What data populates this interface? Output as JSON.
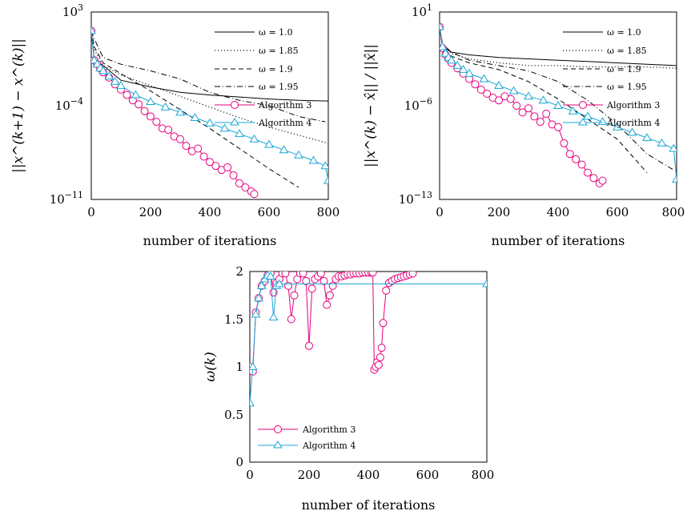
{
  "figure": {
    "colors": {
      "algorithm3": "#e6007e",
      "algorithm4": "#1aa7d6",
      "omega": "#000000",
      "axis": "#000000"
    }
  },
  "chart_data": [
    {
      "type": "line",
      "xlabel": "number of iterations",
      "ylabel": "||x^(k+1) − x^(k)||",
      "xlim": [
        0,
        800
      ],
      "ylim": [
        -11,
        3
      ],
      "yscale": "log",
      "xticks": [
        "0",
        "200",
        "400",
        "600",
        "800"
      ],
      "yticks": [
        {
          "label": "10",
          "exp": "3",
          "value": 3
        },
        {
          "label": "10",
          "exp": "−4",
          "value": -4
        },
        {
          "label": "10",
          "exp": "−11",
          "value": -11
        }
      ],
      "legend": "right",
      "series": [
        {
          "name": "ω = 1.0",
          "style": "solid",
          "x": [
            0,
            10,
            40,
            100,
            200,
            300,
            400,
            500,
            600,
            700,
            800
          ],
          "y": [
            1.6,
            -0.5,
            -1.0,
            -2.1,
            -2.6,
            -3.0,
            -3.2,
            -3.35,
            -3.5,
            -3.6,
            -3.65
          ]
        },
        {
          "name": "ω = 1.85",
          "style": "dotted",
          "x": [
            0,
            10,
            40,
            100,
            200,
            300,
            400,
            500,
            600,
            700,
            800
          ],
          "y": [
            1.6,
            0.2,
            -1.0,
            -1.7,
            -2.5,
            -3.3,
            -4.1,
            -4.9,
            -5.6,
            -6.2,
            -6.8
          ]
        },
        {
          "name": "ω = 1.9",
          "style": "dashed",
          "x": [
            0,
            10,
            40,
            100,
            200,
            300,
            400,
            500,
            600,
            700
          ],
          "y": [
            1.6,
            0.4,
            -0.8,
            -1.6,
            -2.9,
            -4.3,
            -5.7,
            -7.2,
            -8.7,
            -10.1
          ]
        },
        {
          "name": "ω = 1.95",
          "style": "dashdot",
          "x": [
            0,
            10,
            40,
            100,
            200,
            300,
            400,
            500,
            600,
            700,
            790
          ],
          "y": [
            1.6,
            1.0,
            -0.4,
            -0.9,
            -1.4,
            -2.0,
            -3.0,
            -3.6,
            -4.0,
            -4.8,
            -5.2
          ]
        },
        {
          "name": "Algorithm 3",
          "style": "solid",
          "marker": "circle",
          "x": [
            0,
            10,
            20,
            30,
            40,
            60,
            80,
            100,
            120,
            140,
            160,
            180,
            200,
            220,
            240,
            260,
            280,
            300,
            320,
            340,
            360,
            380,
            400,
            420,
            440,
            460,
            480,
            500,
            520,
            540,
            550
          ],
          "y": [
            1.6,
            -0.6,
            -0.9,
            -1.2,
            -1.5,
            -1.9,
            -2.4,
            -2.8,
            -3.2,
            -3.6,
            -3.9,
            -4.4,
            -4.8,
            -5.2,
            -5.7,
            -5.8,
            -6.3,
            -6.5,
            -7.0,
            -7.4,
            -7.2,
            -7.8,
            -8.2,
            -8.5,
            -8.8,
            -8.6,
            -9.2,
            -9.8,
            -10.1,
            -10.4,
            -10.6
          ]
        },
        {
          "name": "Algorithm 4",
          "style": "solid",
          "marker": "triangle",
          "x": [
            0,
            10,
            20,
            30,
            40,
            60,
            80,
            100,
            150,
            200,
            250,
            300,
            350,
            400,
            450,
            500,
            550,
            600,
            650,
            700,
            750,
            790,
            800
          ],
          "y": [
            1.6,
            -0.6,
            -0.9,
            -1.2,
            -1.4,
            -1.8,
            -2.2,
            -2.5,
            -3.2,
            -3.7,
            -4.1,
            -4.5,
            -4.9,
            -5.3,
            -5.7,
            -6.1,
            -6.5,
            -6.9,
            -7.3,
            -7.7,
            -8.1,
            -8.5,
            -9.6
          ]
        }
      ]
    },
    {
      "type": "line",
      "xlabel": "number of iterations",
      "ylabel": "||x^(k) − x̂|| / ||x̂||",
      "xlim": [
        0,
        800
      ],
      "ylim": [
        -13,
        1
      ],
      "yscale": "log",
      "xticks": [
        "0",
        "200",
        "400",
        "600",
        "800"
      ],
      "yticks": [
        {
          "label": "10",
          "exp": "1",
          "value": 1
        },
        {
          "label": "10",
          "exp": "−6",
          "value": -6
        },
        {
          "label": "10",
          "exp": "−13",
          "value": -13
        }
      ],
      "legend": "right",
      "series": [
        {
          "name": "ω = 1.0",
          "style": "solid",
          "x": [
            0,
            10,
            40,
            100,
            200,
            300,
            400,
            500,
            600,
            700,
            800
          ],
          "y": [
            -0.1,
            -1.6,
            -2.0,
            -2.2,
            -2.4,
            -2.5,
            -2.6,
            -2.7,
            -2.8,
            -2.9,
            -3.0
          ]
        },
        {
          "name": "ω = 1.85",
          "style": "dotted",
          "x": [
            0,
            10,
            40,
            100,
            200,
            300,
            400,
            500,
            600,
            700,
            800
          ],
          "y": [
            -0.1,
            -1.5,
            -2.1,
            -2.5,
            -2.8,
            -3.0,
            -3.0,
            -3.1,
            -3.1,
            -3.1,
            -3.2
          ]
        },
        {
          "name": "ω = 1.9",
          "style": "dashed",
          "x": [
            0,
            10,
            40,
            100,
            200,
            300,
            400,
            500,
            600,
            700
          ],
          "y": [
            -0.1,
            -1.6,
            -2.3,
            -2.8,
            -3.3,
            -4.2,
            -5.5,
            -7.0,
            -8.5,
            -11.0
          ]
        },
        {
          "name": "ω = 1.95",
          "style": "dashdot",
          "x": [
            0,
            10,
            40,
            100,
            200,
            300,
            400,
            500,
            600,
            700,
            790
          ],
          "y": [
            -0.1,
            -1.4,
            -2.0,
            -2.6,
            -3.0,
            -3.4,
            -4.2,
            -5.6,
            -7.4,
            -9.6,
            -10.8
          ]
        },
        {
          "name": "Algorithm 3",
          "style": "solid",
          "marker": "circle",
          "x": [
            0,
            10,
            20,
            30,
            40,
            60,
            80,
            100,
            120,
            140,
            160,
            180,
            200,
            220,
            240,
            260,
            280,
            300,
            320,
            340,
            360,
            380,
            400,
            420,
            440,
            460,
            480,
            500,
            520,
            540,
            550
          ],
          "y": [
            -0.1,
            -1.7,
            -2.2,
            -2.5,
            -2.8,
            -3.2,
            -3.6,
            -4.0,
            -4.4,
            -4.8,
            -5.1,
            -5.4,
            -5.6,
            -5.3,
            -5.5,
            -6.0,
            -6.5,
            -6.2,
            -6.8,
            -7.2,
            -6.6,
            -7.4,
            -7.6,
            -8.8,
            -9.6,
            -10.0,
            -10.4,
            -11.0,
            -11.4,
            -11.8,
            -11.6
          ]
        },
        {
          "name": "Algorithm 4",
          "style": "solid",
          "marker": "triangle",
          "x": [
            0,
            10,
            20,
            30,
            40,
            60,
            80,
            100,
            150,
            200,
            250,
            300,
            350,
            400,
            450,
            500,
            550,
            600,
            650,
            700,
            750,
            790,
            800
          ],
          "y": [
            -0.1,
            -1.6,
            -2.1,
            -2.4,
            -2.6,
            -3.0,
            -3.3,
            -3.6,
            -4.0,
            -4.5,
            -4.9,
            -5.3,
            -5.6,
            -6.0,
            -6.4,
            -6.8,
            -7.2,
            -7.6,
            -8.0,
            -8.4,
            -8.8,
            -9.2,
            -11.5
          ]
        }
      ]
    },
    {
      "type": "line",
      "xlabel": "number of iterations",
      "ylabel": "ω(k)",
      "xlim": [
        0,
        800
      ],
      "ylim": [
        0,
        2
      ],
      "xticks": [
        "0",
        "200",
        "400",
        "600",
        "800"
      ],
      "yticks": [
        {
          "label": "0",
          "value": 0
        },
        {
          "label": "0.5",
          "value": 0.5
        },
        {
          "label": "1",
          "value": 1
        },
        {
          "label": "1.5",
          "value": 1.5
        },
        {
          "label": "2",
          "value": 2
        }
      ],
      "legend": "bottom-left",
      "series": [
        {
          "name": "Algorithm 3",
          "style": "solid",
          "marker": "circle",
          "x": [
            0,
            10,
            20,
            30,
            40,
            50,
            60,
            70,
            80,
            90,
            100,
            110,
            120,
            130,
            140,
            150,
            160,
            170,
            180,
            190,
            200,
            210,
            220,
            230,
            240,
            250,
            260,
            270,
            280,
            290,
            300,
            310,
            320,
            330,
            340,
            350,
            360,
            370,
            380,
            390,
            400,
            410,
            415,
            420,
            425,
            430,
            435,
            440,
            445,
            450,
            460,
            470,
            480,
            490,
            500,
            510,
            520,
            530,
            540,
            550
          ],
          "y": [
            1.0,
            0.95,
            1.57,
            1.72,
            1.85,
            1.9,
            1.96,
            1.98,
            1.78,
            1.88,
            1.92,
            1.98,
            1.98,
            1.85,
            1.5,
            1.75,
            1.92,
            1.98,
            1.98,
            1.9,
            1.22,
            1.82,
            1.92,
            1.95,
            1.98,
            1.9,
            1.65,
            1.75,
            1.85,
            1.92,
            1.95,
            1.95,
            1.96,
            1.97,
            1.97,
            1.98,
            1.98,
            1.98,
            1.99,
            1.99,
            1.99,
            1.99,
            1.99,
            0.97,
            1.0,
            1.05,
            1.02,
            1.1,
            1.2,
            1.46,
            1.8,
            1.88,
            1.9,
            1.92,
            1.93,
            1.94,
            1.95,
            1.96,
            1.97,
            1.98
          ]
        },
        {
          "name": "Algorithm 4",
          "style": "solid",
          "marker": "triangle",
          "x": [
            0,
            10,
            20,
            30,
            40,
            50,
            60,
            70,
            80,
            90,
            100,
            800
          ],
          "y": [
            0.62,
            1.0,
            1.55,
            1.72,
            1.85,
            1.92,
            1.96,
            1.95,
            1.52,
            1.85,
            1.87,
            1.87
          ]
        }
      ]
    }
  ]
}
